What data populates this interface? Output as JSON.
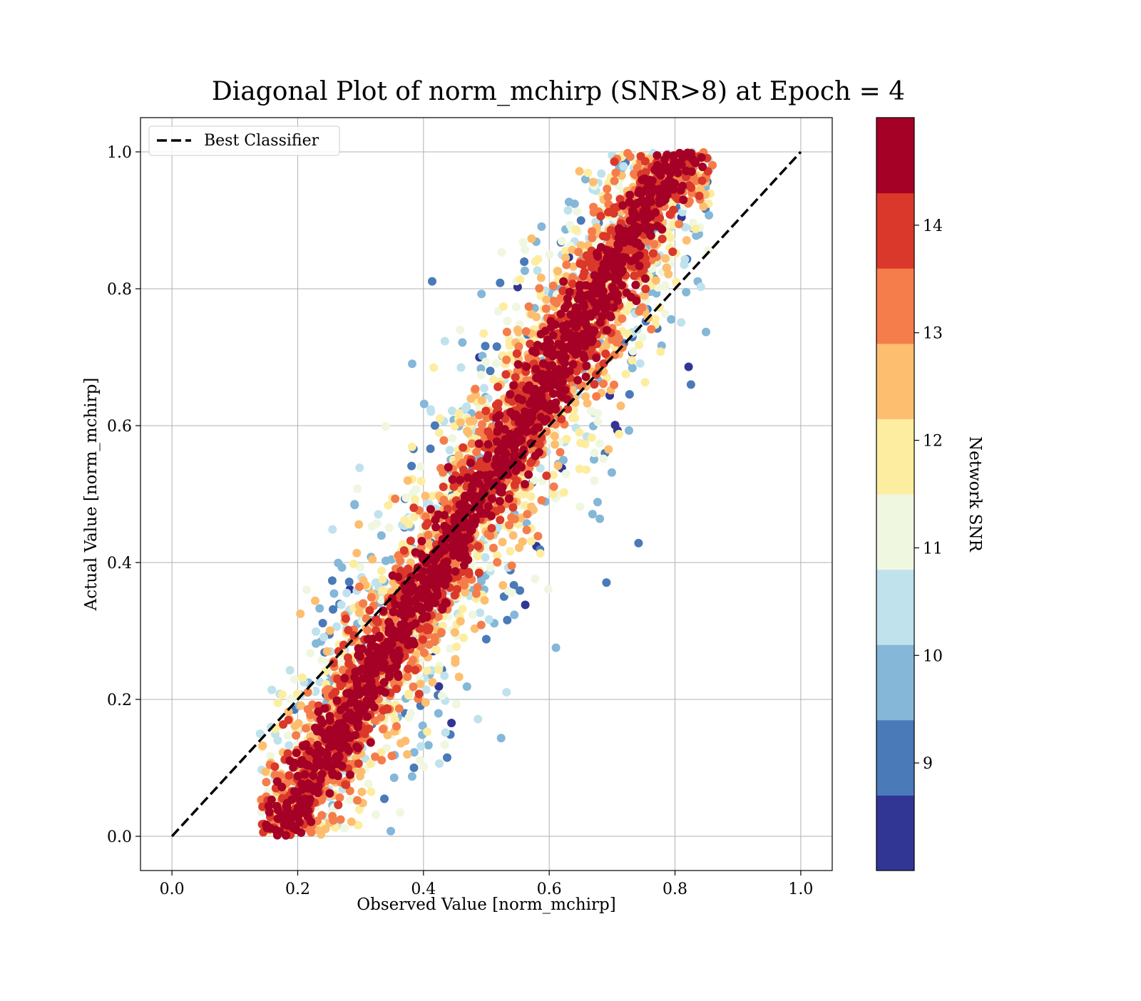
{
  "chart_data": {
    "type": "scatter",
    "title": "Diagonal Plot of norm_mchirp (SNR>8) at Epoch = 4",
    "xlabel": "Observed Value [norm_mchirp]",
    "ylabel": "Actual Value [norm_mchirp]",
    "xlim": [
      -0.05,
      1.05
    ],
    "ylim": [
      -0.05,
      1.05
    ],
    "x_ticks": [
      "0.0",
      "0.2",
      "0.4",
      "0.6",
      "0.8",
      "1.0"
    ],
    "y_ticks": [
      "0.0",
      "0.2",
      "0.4",
      "0.6",
      "0.8",
      "1.0"
    ],
    "grid": true,
    "legend": {
      "position": "top-left",
      "entries": [
        {
          "label": "Best Classifier",
          "style": "dashed",
          "color": "#000000"
        }
      ]
    },
    "reference_line": {
      "name": "Best Classifier",
      "x": [
        0.0,
        1.0
      ],
      "y": [
        0.0,
        1.0
      ],
      "style": "dashed",
      "color": "#000000"
    },
    "scatter": {
      "description_of_distribution": "points concentrated around the diagonal; high-SNR points near diagonal, low-SNR points scattered above-left and below-right",
      "x_range": [
        0.14,
        0.86
      ],
      "y_range": [
        0.0,
        1.0
      ],
      "color_variable": "Network SNR"
    },
    "colorbar": {
      "label": "Network SNR",
      "range": [
        8.0,
        15.0
      ],
      "ticks": [
        "9",
        "10",
        "11",
        "12",
        "13",
        "14"
      ],
      "tick_values": [
        9,
        10,
        11,
        12,
        13,
        14
      ],
      "colors": [
        "#313695",
        "#4a7ab7",
        "#84b7d8",
        "#bfe2ed",
        "#eff7e0",
        "#fdeda0",
        "#fdbe70",
        "#f57d4b",
        "#da382a",
        "#a50026"
      ]
    }
  }
}
